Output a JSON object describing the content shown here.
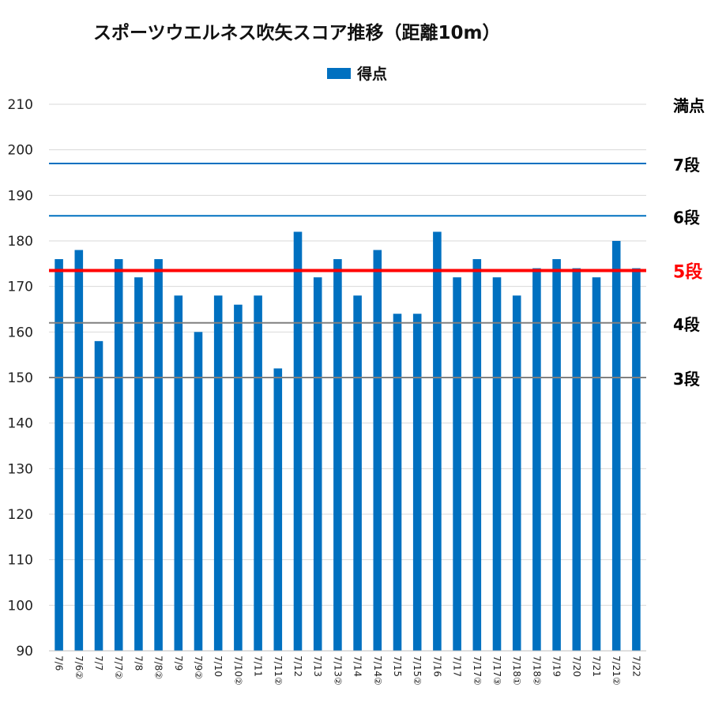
{
  "chart_data": {
    "type": "bar",
    "title": "スポーツウエルネス吹矢スコア推移（距離10m）",
    "legend": {
      "label": "得点",
      "placement": "top"
    },
    "categories": [
      "7/6",
      "7/6②",
      "7/7",
      "7/7②",
      "7/8",
      "7/8②",
      "7/9",
      "7/9②",
      "7/10",
      "7/10②",
      "7/11",
      "7/11②",
      "7/12",
      "7/13",
      "7/13②",
      "7/14",
      "7/14②",
      "7/15",
      "7/15②",
      "7/16",
      "7/17",
      "7/17②",
      "7/17③",
      "7/18①",
      "7/18②",
      "7/19",
      "7/20",
      "7/21",
      "7/21②",
      "7/22"
    ],
    "series": [
      {
        "name": "得点",
        "color": "#0070C0",
        "values": [
          176,
          178,
          158,
          176,
          172,
          176,
          168,
          160,
          168,
          166,
          168,
          152,
          182,
          172,
          176,
          168,
          178,
          164,
          164,
          182,
          172,
          176,
          172,
          168,
          174,
          176,
          174,
          172,
          180,
          174
        ]
      }
    ],
    "ylim": [
      90,
      210
    ],
    "yticks": [
      90,
      100,
      110,
      120,
      130,
      140,
      150,
      160,
      170,
      180,
      190,
      200,
      210
    ],
    "grid": true,
    "reference_lines": [
      {
        "label": "満点",
        "value": 210,
        "color": "#d9d9d9",
        "label_color": "#000000"
      },
      {
        "label": "7段",
        "value": 197,
        "color": "#0070C0",
        "label_color": "#000000"
      },
      {
        "label": "6段",
        "value": 185.5,
        "color": "#0070C0",
        "label_color": "#000000"
      },
      {
        "label": "5段",
        "value": 173.5,
        "color": "#FF0000",
        "label_color": "#FF0000"
      },
      {
        "label": "4段",
        "value": 162,
        "color": "#808080",
        "label_color": "#000000"
      },
      {
        "label": "3段",
        "value": 150,
        "color": "#808080",
        "label_color": "#000000"
      }
    ]
  }
}
